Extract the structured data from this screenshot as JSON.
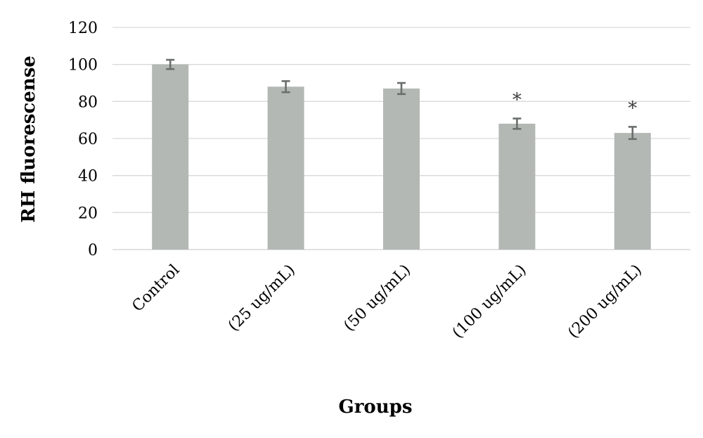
{
  "chart_data": {
    "type": "bar",
    "title": "",
    "xlabel": "Groups",
    "ylabel": "RH fluorescense",
    "categories": [
      "Control",
      "(25 ug/mL)",
      "(50 ug/mL)",
      "(100 ug/mL)",
      "(200 ug/mL)"
    ],
    "values": [
      100,
      88,
      87,
      68,
      63
    ],
    "errors": [
      2.5,
      3,
      3,
      2.8,
      3.3
    ],
    "annotations": [
      "",
      "",
      "",
      "*",
      "*"
    ],
    "ylim": [
      0,
      120
    ],
    "yticks": [
      0,
      20,
      40,
      60,
      80,
      100,
      120
    ],
    "grid": true,
    "legend": "none",
    "bar_color": "#b3b8b5",
    "error_bar_color": "#6a6e6c"
  }
}
